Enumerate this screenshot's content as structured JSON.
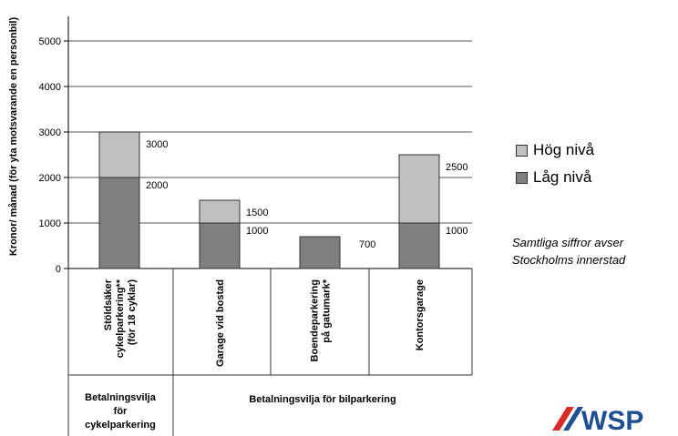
{
  "chart_data": {
    "type": "bar",
    "stacked": true,
    "ylabel": "Kronor/ månad (för yta motsvarande en personbil)",
    "ylim": [
      0,
      5000
    ],
    "yticks": [
      "0",
      "1000",
      "2000",
      "3000",
      "4000",
      "5000"
    ],
    "categories": [
      [
        "Stöldsäker",
        "cykelparkering**",
        "(för 18 cyklar)"
      ],
      [
        "Garage vid bostad"
      ],
      [
        "Boendeparkering",
        "på gatumark*"
      ],
      [
        "Kontorsgarage"
      ]
    ],
    "series": [
      {
        "name": "Låg nivå",
        "color": "#7f7f7f",
        "values": [
          2000,
          1000,
          700,
          1000
        ]
      },
      {
        "name": "Hög nivå",
        "color": "#c0c0c0",
        "values": [
          3000,
          1500,
          null,
          2500
        ]
      }
    ],
    "data_labels": {
      "low": [
        "2000",
        "1000",
        "700",
        "1000"
      ],
      "high": [
        "3000",
        "1500",
        "",
        "2500"
      ]
    },
    "groups": [
      {
        "label": [
          "Betalningsvilja",
          "för",
          "cykelparkering"
        ]
      },
      {
        "label": [
          "Betalningsvilja för bilparkering"
        ]
      }
    ],
    "legend_position": "right",
    "grid": true
  },
  "legend_title_hog": "Hög nivå",
  "legend_title_lag": "Låg nivå",
  "note_line1": "Samtliga siffror avser",
  "note_line2": "Stockholms innerstad",
  "logo_text": "WSP",
  "colors": {
    "low": "#7f7f7f",
    "high": "#c0c0c0",
    "grid": "#555555",
    "logo_red": "#d62b2b",
    "logo_blue": "#1d4f91"
  }
}
